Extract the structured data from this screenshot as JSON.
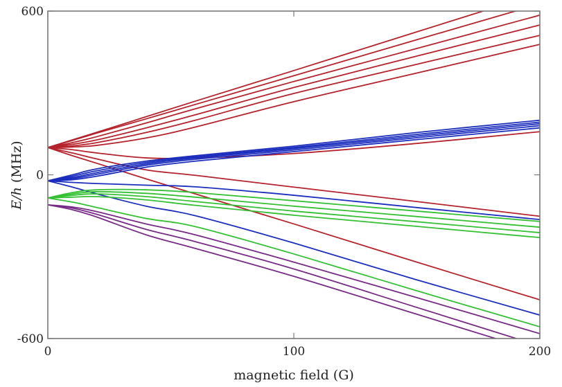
{
  "chart_data": {
    "type": "line",
    "title": "",
    "xlabel": "magnetic field (G)",
    "ylabel_italic": "E/h",
    "ylabel_unit": "(MHz)",
    "xlim": [
      0,
      200
    ],
    "ylim": [
      -600,
      600
    ],
    "x_ticks": [
      0,
      100,
      200
    ],
    "y_ticks": [
      600,
      0,
      -600
    ],
    "x_tick_labels": [
      "0",
      "100",
      "200"
    ],
    "y_tick_labels": [
      "600",
      "0",
      "-600"
    ],
    "grid": false,
    "legend": "none",
    "x": [
      0,
      10,
      20,
      40,
      60,
      100,
      150,
      200
    ],
    "colors": {
      "red": "#b5222b",
      "blue": "#1b2dbd",
      "green": "#33c033",
      "purple": "#762a86"
    },
    "series": [
      {
        "color": "red",
        "values": [
          100,
          128,
          156,
          213,
          270,
          382,
          524,
          665
        ]
      },
      {
        "color": "red",
        "values": [
          100,
          126,
          153,
          205,
          258,
          363,
          495,
          626
        ]
      },
      {
        "color": "red",
        "values": [
          100,
          118,
          140,
          190,
          242,
          342,
          463,
          585
        ]
      },
      {
        "color": "red",
        "values": [
          100,
          112,
          128,
          172,
          220,
          320,
          435,
          549
        ]
      },
      {
        "color": "red",
        "values": [
          100,
          106,
          118,
          155,
          200,
          298,
          405,
          511
        ]
      },
      {
        "color": "red",
        "values": [
          100,
          102,
          108,
          135,
          175,
          268,
          373,
          478
        ]
      },
      {
        "color": "red",
        "values": [
          100,
          92,
          80,
          62,
          62,
          78,
          115,
          158
        ]
      },
      {
        "color": "red",
        "values": [
          100,
          80,
          58,
          18,
          -2,
          -45,
          -98,
          -152
        ]
      },
      {
        "color": "red",
        "values": [
          100,
          70,
          42,
          -15,
          -70,
          -180,
          -320,
          -458
        ]
      },
      {
        "color": "blue",
        "values": [
          -22,
          0,
          22,
          50,
          70,
          105,
          155,
          200
        ]
      },
      {
        "color": "blue",
        "values": [
          -22,
          -5,
          15,
          45,
          66,
          100,
          148,
          193
        ]
      },
      {
        "color": "blue",
        "values": [
          -22,
          -10,
          8,
          40,
          62,
          96,
          142,
          187
        ]
      },
      {
        "color": "blue",
        "values": [
          -22,
          -14,
          2,
          35,
          57,
          91,
          136,
          180
        ]
      },
      {
        "color": "blue",
        "values": [
          -22,
          -18,
          -5,
          28,
          50,
          85,
          129,
          172
        ]
      },
      {
        "color": "blue",
        "values": [
          -22,
          -28,
          -32,
          -38,
          -44,
          -75,
          -120,
          -164
        ]
      },
      {
        "color": "blue",
        "values": [
          -22,
          -45,
          -70,
          -115,
          -150,
          -250,
          -385,
          -514
        ]
      },
      {
        "color": "green",
        "values": [
          -85,
          -65,
          -55,
          -55,
          -65,
          -95,
          -133,
          -171
        ]
      },
      {
        "color": "green",
        "values": [
          -85,
          -70,
          -62,
          -68,
          -82,
          -115,
          -153,
          -192
        ]
      },
      {
        "color": "green",
        "values": [
          -85,
          -75,
          -70,
          -80,
          -98,
          -133,
          -172,
          -212
        ]
      },
      {
        "color": "green",
        "values": [
          -85,
          -82,
          -80,
          -92,
          -112,
          -148,
          -189,
          -230
        ]
      },
      {
        "color": "green",
        "values": [
          -85,
          -100,
          -120,
          -160,
          -190,
          -290,
          -425,
          -557
        ]
      },
      {
        "color": "purple",
        "values": [
          -110,
          -118,
          -135,
          -180,
          -220,
          -320,
          -450,
          -582
        ]
      },
      {
        "color": "purple",
        "values": [
          -110,
          -122,
          -145,
          -200,
          -245,
          -345,
          -486,
          -627
        ]
      },
      {
        "color": "purple",
        "values": [
          -110,
          -128,
          -155,
          -220,
          -270,
          -372,
          -511,
          -650
        ]
      }
    ]
  }
}
